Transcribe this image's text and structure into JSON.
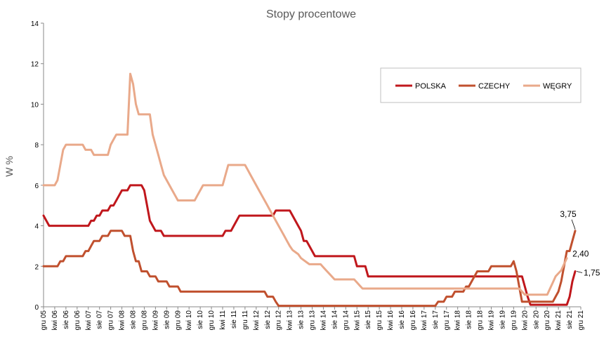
{
  "chart_data": {
    "type": "line",
    "title": "Stopy procentowe",
    "ylabel": "W %",
    "xlabel": "",
    "ylim": [
      0,
      14
    ],
    "y_ticks": [
      0,
      2,
      4,
      6,
      8,
      10,
      12,
      14
    ],
    "grid": false,
    "legend_position": "top-right",
    "x_tick_labels": [
      "gru 05",
      "kwi 06",
      "sie 06",
      "gru 06",
      "kwi 07",
      "sie 07",
      "gru 07",
      "kwi 08",
      "sie 08",
      "gru 08",
      "kwi 09",
      "sie 09",
      "gru 09",
      "kwi 10",
      "sie 10",
      "gru 10",
      "kwi 11",
      "sie 11",
      "gru 11",
      "kwi 12",
      "sie 12",
      "gru 12",
      "kwi 13",
      "sie 13",
      "gru 13",
      "kwi 14",
      "sie 14",
      "gru 14",
      "kwi 15",
      "sie 15",
      "gru 15",
      "kwi 16",
      "sie 16",
      "gru 16",
      "kwi 17",
      "sie 17",
      "gru 17",
      "kwi 18",
      "sie 18",
      "gru 18",
      "kwi 19",
      "sie 19",
      "gru 19",
      "kwi 20",
      "sie 20",
      "gru 20",
      "kwi 21",
      "sie 21",
      "gru 21"
    ],
    "series": [
      {
        "name": "POLSKA",
        "color": "#C0171C",
        "points": [
          [
            0,
            4.5
          ],
          [
            2,
            4.0
          ],
          [
            16,
            4.0
          ],
          [
            17,
            4.25
          ],
          [
            18,
            4.25
          ],
          [
            19,
            4.5
          ],
          [
            20,
            4.5
          ],
          [
            21,
            4.75
          ],
          [
            23,
            4.75
          ],
          [
            24,
            5.0
          ],
          [
            25,
            5.0
          ],
          [
            26,
            5.25
          ],
          [
            27,
            5.5
          ],
          [
            28,
            5.75
          ],
          [
            30,
            5.75
          ],
          [
            31,
            6.0
          ],
          [
            35,
            6.0
          ],
          [
            36,
            5.75
          ],
          [
            37,
            5.0
          ],
          [
            38,
            4.25
          ],
          [
            39,
            4.0
          ],
          [
            40,
            3.75
          ],
          [
            42,
            3.75
          ],
          [
            43,
            3.5
          ],
          [
            64,
            3.5
          ],
          [
            65,
            3.75
          ],
          [
            67,
            3.75
          ],
          [
            68,
            4.0
          ],
          [
            69,
            4.25
          ],
          [
            70,
            4.5
          ],
          [
            82,
            4.5
          ],
          [
            83,
            4.75
          ],
          [
            88,
            4.75
          ],
          [
            89,
            4.5
          ],
          [
            90,
            4.25
          ],
          [
            91,
            4.0
          ],
          [
            92,
            3.75
          ],
          [
            93,
            3.25
          ],
          [
            94,
            3.25
          ],
          [
            95,
            3.0
          ],
          [
            96,
            2.75
          ],
          [
            97,
            2.5
          ],
          [
            111,
            2.5
          ],
          [
            112,
            2.0
          ],
          [
            115,
            2.0
          ],
          [
            116,
            1.5
          ],
          [
            171,
            1.5
          ],
          [
            172,
            1.0
          ],
          [
            173,
            0.5
          ],
          [
            174,
            0.1
          ],
          [
            187,
            0.1
          ],
          [
            188,
            0.5
          ],
          [
            189,
            1.25
          ],
          [
            190,
            1.75
          ]
        ]
      },
      {
        "name": "CZECHY",
        "color": "#C0502E",
        "points": [
          [
            0,
            2.0
          ],
          [
            5,
            2.0
          ],
          [
            6,
            2.25
          ],
          [
            7,
            2.25
          ],
          [
            8,
            2.5
          ],
          [
            14,
            2.5
          ],
          [
            15,
            2.75
          ],
          [
            16,
            2.75
          ],
          [
            17,
            3.0
          ],
          [
            18,
            3.25
          ],
          [
            20,
            3.25
          ],
          [
            21,
            3.5
          ],
          [
            23,
            3.5
          ],
          [
            24,
            3.75
          ],
          [
            28,
            3.75
          ],
          [
            29,
            3.5
          ],
          [
            31,
            3.5
          ],
          [
            32,
            2.75
          ],
          [
            33,
            2.25
          ],
          [
            34,
            2.25
          ],
          [
            35,
            1.75
          ],
          [
            37,
            1.75
          ],
          [
            38,
            1.5
          ],
          [
            40,
            1.5
          ],
          [
            41,
            1.25
          ],
          [
            44,
            1.25
          ],
          [
            45,
            1.0
          ],
          [
            48,
            1.0
          ],
          [
            49,
            0.75
          ],
          [
            70,
            0.75
          ],
          [
            71,
            0.75
          ],
          [
            79,
            0.75
          ],
          [
            80,
            0.5
          ],
          [
            82,
            0.5
          ],
          [
            83,
            0.25
          ],
          [
            84,
            0.05
          ],
          [
            140,
            0.05
          ],
          [
            141,
            0.25
          ],
          [
            143,
            0.25
          ],
          [
            144,
            0.5
          ],
          [
            146,
            0.5
          ],
          [
            147,
            0.75
          ],
          [
            150,
            0.75
          ],
          [
            151,
            1.0
          ],
          [
            152,
            1.0
          ],
          [
            153,
            1.25
          ],
          [
            154,
            1.5
          ],
          [
            155,
            1.75
          ],
          [
            159,
            1.75
          ],
          [
            160,
            2.0
          ],
          [
            167,
            2.0
          ],
          [
            168,
            2.25
          ],
          [
            169,
            1.75
          ],
          [
            170,
            1.0
          ],
          [
            171,
            0.25
          ],
          [
            182,
            0.25
          ],
          [
            183,
            0.5
          ],
          [
            184,
            0.75
          ],
          [
            185,
            1.25
          ],
          [
            186,
            2.0
          ],
          [
            187,
            2.75
          ],
          [
            188,
            2.75
          ],
          [
            189,
            3.25
          ],
          [
            190,
            3.75
          ]
        ]
      },
      {
        "name": "WĘGRY",
        "color": "#E9A98A",
        "points": [
          [
            0,
            6.0
          ],
          [
            4,
            6.0
          ],
          [
            5,
            6.25
          ],
          [
            6,
            7.0
          ],
          [
            7,
            7.75
          ],
          [
            8,
            8.0
          ],
          [
            14,
            8.0
          ],
          [
            15,
            7.75
          ],
          [
            17,
            7.75
          ],
          [
            18,
            7.5
          ],
          [
            23,
            7.5
          ],
          [
            24,
            8.0
          ],
          [
            25,
            8.25
          ],
          [
            26,
            8.5
          ],
          [
            30,
            8.5
          ],
          [
            31,
            11.5
          ],
          [
            32,
            11.0
          ],
          [
            33,
            10.0
          ],
          [
            34,
            9.5
          ],
          [
            38,
            9.5
          ],
          [
            39,
            8.5
          ],
          [
            40,
            8.0
          ],
          [
            41,
            7.5
          ],
          [
            42,
            7.0
          ],
          [
            43,
            6.5
          ],
          [
            44,
            6.25
          ],
          [
            45,
            6.0
          ],
          [
            46,
            5.75
          ],
          [
            47,
            5.5
          ],
          [
            48,
            5.25
          ],
          [
            54,
            5.25
          ],
          [
            55,
            5.5
          ],
          [
            56,
            5.75
          ],
          [
            57,
            6.0
          ],
          [
            64,
            6.0
          ],
          [
            65,
            6.5
          ],
          [
            66,
            7.0
          ],
          [
            72,
            7.0
          ],
          [
            73,
            6.75
          ],
          [
            74,
            6.5
          ],
          [
            75,
            6.25
          ],
          [
            76,
            6.0
          ],
          [
            77,
            5.75
          ],
          [
            78,
            5.5
          ],
          [
            79,
            5.25
          ],
          [
            80,
            5.0
          ],
          [
            81,
            4.75
          ],
          [
            82,
            4.5
          ],
          [
            83,
            4.25
          ],
          [
            84,
            4.0
          ],
          [
            85,
            3.75
          ],
          [
            86,
            3.5
          ],
          [
            87,
            3.25
          ],
          [
            88,
            3.0
          ],
          [
            89,
            2.8
          ],
          [
            90,
            2.7
          ],
          [
            91,
            2.6
          ],
          [
            92,
            2.4
          ],
          [
            93,
            2.3
          ],
          [
            94,
            2.2
          ],
          [
            95,
            2.1
          ],
          [
            99,
            2.1
          ],
          [
            100,
            1.95
          ],
          [
            101,
            1.8
          ],
          [
            102,
            1.65
          ],
          [
            103,
            1.5
          ],
          [
            104,
            1.35
          ],
          [
            111,
            1.35
          ],
          [
            112,
            1.2
          ],
          [
            113,
            1.05
          ],
          [
            114,
            0.9
          ],
          [
            170,
            0.9
          ],
          [
            171,
            0.75
          ],
          [
            172,
            0.6
          ],
          [
            180,
            0.6
          ],
          [
            181,
            0.9
          ],
          [
            182,
            1.2
          ],
          [
            183,
            1.5
          ],
          [
            184,
            1.65
          ],
          [
            185,
            1.8
          ],
          [
            186,
            2.1
          ],
          [
            187,
            2.4
          ]
        ]
      }
    ],
    "annotations": [
      {
        "text": "3,75",
        "x": 190,
        "y": 3.75
      },
      {
        "text": "2,40",
        "x": 187,
        "y": 2.4
      },
      {
        "text": "1,75",
        "x": 190,
        "y": 1.75
      }
    ]
  }
}
